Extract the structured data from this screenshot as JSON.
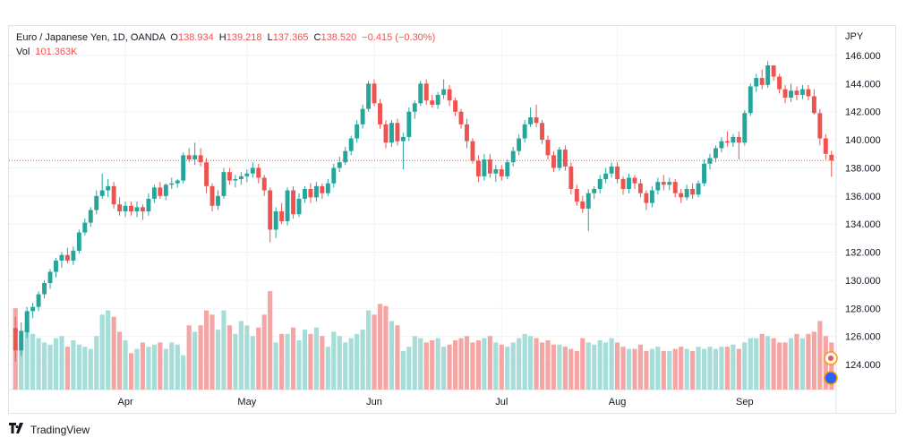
{
  "legend": {
    "symbol": "Euro / Japanese Yen, 1D, OANDA",
    "o_label": "O",
    "o": "138.934",
    "h_label": "H",
    "h": "139.218",
    "l_label": "L",
    "l": "137.365",
    "c_label": "C",
    "c": "138.520",
    "change": "−0.415 (−0.30%)",
    "vol_label": "Vol",
    "vol": "101.363K"
  },
  "footer": {
    "brand": "TradingView"
  },
  "colors": {
    "up": "#26a69a",
    "down": "#ef5350",
    "up_vol": "#a6ddd8",
    "down_vol": "#f5a6a4",
    "grid": "#f0f3fa",
    "text": "#131722",
    "last_price_line": "#ef5350"
  },
  "chart_data": {
    "type": "candlestick",
    "price_axis_label": "JPY",
    "y_ticks": [
      "146.000",
      "144.000",
      "142.000",
      "140.000",
      "138.000",
      "136.000",
      "134.000",
      "132.000",
      "130.000",
      "128.000",
      "126.000",
      "124.000"
    ],
    "ylim": [
      122.0,
      148.0
    ],
    "x_ticks": [
      {
        "label": "Apr",
        "index": 19
      },
      {
        "label": "May",
        "index": 40
      },
      {
        "label": "Jun",
        "index": 62
      },
      {
        "label": "Jul",
        "index": 84
      },
      {
        "label": "Aug",
        "index": 104
      },
      {
        "label": "Sep",
        "index": 126
      }
    ],
    "last_close": 138.52,
    "grid": true,
    "candles": [
      [
        126.6,
        127.4,
        124.2,
        125.0
      ],
      [
        125.0,
        127.0,
        124.6,
        126.4
      ],
      [
        126.3,
        128.1,
        125.9,
        127.8
      ],
      [
        127.8,
        128.4,
        127.3,
        128.1
      ],
      [
        128.1,
        129.2,
        127.8,
        129.0
      ],
      [
        129.0,
        130.0,
        128.7,
        129.8
      ],
      [
        129.8,
        130.8,
        129.4,
        130.6
      ],
      [
        130.6,
        131.6,
        130.2,
        131.4
      ],
      [
        131.4,
        132.0,
        130.9,
        131.8
      ],
      [
        131.8,
        132.3,
        131.2,
        131.4
      ],
      [
        131.4,
        132.4,
        131.1,
        132.1
      ],
      [
        132.1,
        133.6,
        131.9,
        133.4
      ],
      [
        133.4,
        134.4,
        133.2,
        134.1
      ],
      [
        134.1,
        135.2,
        133.8,
        135.0
      ],
      [
        135.0,
        136.4,
        134.7,
        136.0
      ],
      [
        136.0,
        137.6,
        135.8,
        136.4
      ],
      [
        136.4,
        137.2,
        135.9,
        136.7
      ],
      [
        136.7,
        137.0,
        135.1,
        135.4
      ],
      [
        135.4,
        135.9,
        134.6,
        134.9
      ],
      [
        134.9,
        135.6,
        134.5,
        135.3
      ],
      [
        135.3,
        135.6,
        134.6,
        134.9
      ],
      [
        134.9,
        135.6,
        134.5,
        135.2
      ],
      [
        135.2,
        135.4,
        134.3,
        134.9
      ],
      [
        134.9,
        136.2,
        134.6,
        135.8
      ],
      [
        135.8,
        136.8,
        135.5,
        136.6
      ],
      [
        136.6,
        137.0,
        135.8,
        136.0
      ],
      [
        136.0,
        136.9,
        135.7,
        136.8
      ],
      [
        136.8,
        137.3,
        136.5,
        136.9
      ],
      [
        136.9,
        137.2,
        136.6,
        137.1
      ],
      [
        137.1,
        139.1,
        136.9,
        138.9
      ],
      [
        138.9,
        139.4,
        138.4,
        138.6
      ],
      [
        138.6,
        139.8,
        138.2,
        138.9
      ],
      [
        138.9,
        139.4,
        138.1,
        138.4
      ],
      [
        138.4,
        138.7,
        136.2,
        136.7
      ],
      [
        136.7,
        136.9,
        134.9,
        135.3
      ],
      [
        135.3,
        136.4,
        135.0,
        136.0
      ],
      [
        136.0,
        138.0,
        135.8,
        137.7
      ],
      [
        137.7,
        138.0,
        136.8,
        137.1
      ],
      [
        137.1,
        137.5,
        136.6,
        137.2
      ],
      [
        137.2,
        137.7,
        136.8,
        137.4
      ],
      [
        137.4,
        137.9,
        137.0,
        137.6
      ],
      [
        137.6,
        138.4,
        137.3,
        138.0
      ],
      [
        138.0,
        138.3,
        136.9,
        137.3
      ],
      [
        137.3,
        137.5,
        136.0,
        136.4
      ],
      [
        136.4,
        136.6,
        132.7,
        133.6
      ],
      [
        133.6,
        135.2,
        133.0,
        134.9
      ],
      [
        134.9,
        135.5,
        134.0,
        134.2
      ],
      [
        134.2,
        136.6,
        133.9,
        136.4
      ],
      [
        136.4,
        136.7,
        134.4,
        134.7
      ],
      [
        134.7,
        136.2,
        134.5,
        135.8
      ],
      [
        135.8,
        136.7,
        135.5,
        136.5
      ],
      [
        136.5,
        136.9,
        135.5,
        135.9
      ],
      [
        135.9,
        137.0,
        135.6,
        136.7
      ],
      [
        136.7,
        136.9,
        135.8,
        136.2
      ],
      [
        136.2,
        137.2,
        136.0,
        136.9
      ],
      [
        136.9,
        138.3,
        136.6,
        138.0
      ],
      [
        138.0,
        138.8,
        137.7,
        138.4
      ],
      [
        138.4,
        139.5,
        138.2,
        139.2
      ],
      [
        139.2,
        140.3,
        138.9,
        140.1
      ],
      [
        140.1,
        141.4,
        139.8,
        141.1
      ],
      [
        141.1,
        142.5,
        140.8,
        142.2
      ],
      [
        142.2,
        144.2,
        142.0,
        144.0
      ],
      [
        144.0,
        144.3,
        142.4,
        142.6
      ],
      [
        142.6,
        142.9,
        140.8,
        141.1
      ],
      [
        141.1,
        141.4,
        139.4,
        139.8
      ],
      [
        139.8,
        141.4,
        139.5,
        141.2
      ],
      [
        141.2,
        141.5,
        139.6,
        139.9
      ],
      [
        139.9,
        140.5,
        137.9,
        140.2
      ],
      [
        140.2,
        142.3,
        139.9,
        142.0
      ],
      [
        142.0,
        142.8,
        141.5,
        142.6
      ],
      [
        142.6,
        144.2,
        142.4,
        144.0
      ],
      [
        144.0,
        144.3,
        142.5,
        142.8
      ],
      [
        142.8,
        143.2,
        142.3,
        142.5
      ],
      [
        142.5,
        143.4,
        142.2,
        143.2
      ],
      [
        143.2,
        144.3,
        142.9,
        143.6
      ],
      [
        143.6,
        143.9,
        142.4,
        142.8
      ],
      [
        142.8,
        143.0,
        141.7,
        142.0
      ],
      [
        142.0,
        142.2,
        140.8,
        141.1
      ],
      [
        141.1,
        141.5,
        139.4,
        139.9
      ],
      [
        139.9,
        140.1,
        138.3,
        138.5
      ],
      [
        138.5,
        138.9,
        137.0,
        137.4
      ],
      [
        137.4,
        139.0,
        137.1,
        138.6
      ],
      [
        138.6,
        139.0,
        137.3,
        137.6
      ],
      [
        137.6,
        138.2,
        137.0,
        137.9
      ],
      [
        137.9,
        138.2,
        137.1,
        137.4
      ],
      [
        137.4,
        138.6,
        137.2,
        138.4
      ],
      [
        138.4,
        139.5,
        138.1,
        139.2
      ],
      [
        139.2,
        140.4,
        138.9,
        140.1
      ],
      [
        140.1,
        141.4,
        139.8,
        141.1
      ],
      [
        141.1,
        142.3,
        140.9,
        141.6
      ],
      [
        141.6,
        142.5,
        140.9,
        141.2
      ],
      [
        141.2,
        141.4,
        139.7,
        140.0
      ],
      [
        140.0,
        140.3,
        138.6,
        138.9
      ],
      [
        138.9,
        139.2,
        137.7,
        138.0
      ],
      [
        138.0,
        139.5,
        137.8,
        139.3
      ],
      [
        139.3,
        139.6,
        137.8,
        138.1
      ],
      [
        138.1,
        138.4,
        136.1,
        136.5
      ],
      [
        136.5,
        136.8,
        135.3,
        135.6
      ],
      [
        135.6,
        136.0,
        134.8,
        135.1
      ],
      [
        135.1,
        136.5,
        133.5,
        136.2
      ],
      [
        136.2,
        136.7,
        135.8,
        136.5
      ],
      [
        136.5,
        137.5,
        136.2,
        137.2
      ],
      [
        137.2,
        138.0,
        136.9,
        137.6
      ],
      [
        137.6,
        138.4,
        137.3,
        138.1
      ],
      [
        138.1,
        138.4,
        136.9,
        137.2
      ],
      [
        137.2,
        137.4,
        136.1,
        136.5
      ],
      [
        136.5,
        137.6,
        136.2,
        137.3
      ],
      [
        137.3,
        137.5,
        136.5,
        136.9
      ],
      [
        136.9,
        137.2,
        135.9,
        136.2
      ],
      [
        136.2,
        136.4,
        135.0,
        135.5
      ],
      [
        135.5,
        136.7,
        135.2,
        136.4
      ],
      [
        136.4,
        137.3,
        136.1,
        137.0
      ],
      [
        137.0,
        137.5,
        136.4,
        136.8
      ],
      [
        136.8,
        137.3,
        136.4,
        137.0
      ],
      [
        137.0,
        137.2,
        135.9,
        136.2
      ],
      [
        136.2,
        136.5,
        135.5,
        135.9
      ],
      [
        135.9,
        136.8,
        135.7,
        136.5
      ],
      [
        136.5,
        136.9,
        135.8,
        136.1
      ],
      [
        136.1,
        137.1,
        135.9,
        136.9
      ],
      [
        136.9,
        138.6,
        136.7,
        138.3
      ],
      [
        138.3,
        139.0,
        137.9,
        138.7
      ],
      [
        138.7,
        139.6,
        138.4,
        139.4
      ],
      [
        139.4,
        140.2,
        139.1,
        139.9
      ],
      [
        139.9,
        140.6,
        139.5,
        139.8
      ],
      [
        139.8,
        140.4,
        139.5,
        140.2
      ],
      [
        140.2,
        140.6,
        138.6,
        139.8
      ],
      [
        139.8,
        142.1,
        139.6,
        141.9
      ],
      [
        141.9,
        144.0,
        141.7,
        143.8
      ],
      [
        143.8,
        144.7,
        143.4,
        144.4
      ],
      [
        144.4,
        145.0,
        143.6,
        143.9
      ],
      [
        143.9,
        145.6,
        143.7,
        145.3
      ],
      [
        145.3,
        145.3,
        144.2,
        144.5
      ],
      [
        144.5,
        144.7,
        143.3,
        143.6
      ],
      [
        143.6,
        143.9,
        142.6,
        143.0
      ],
      [
        143.0,
        144.0,
        142.7,
        143.5
      ],
      [
        143.5,
        143.8,
        142.8,
        143.2
      ],
      [
        143.2,
        143.9,
        142.9,
        143.6
      ],
      [
        143.6,
        143.9,
        142.8,
        143.1
      ],
      [
        143.1,
        143.6,
        141.8,
        141.9
      ],
      [
        141.9,
        142.2,
        139.6,
        140.1
      ],
      [
        140.1,
        140.4,
        138.6,
        139.0
      ],
      [
        138.934,
        139.218,
        137.365,
        138.52
      ]
    ],
    "volume": [
      76,
      48,
      64,
      52,
      48,
      44,
      42,
      48,
      50,
      40,
      46,
      42,
      40,
      38,
      50,
      70,
      74,
      68,
      54,
      46,
      34,
      38,
      44,
      40,
      42,
      44,
      38,
      44,
      42,
      32,
      60,
      54,
      60,
      74,
      70,
      56,
      74,
      60,
      52,
      64,
      60,
      50,
      58,
      70,
      92,
      44,
      52,
      52,
      58,
      46,
      56,
      52,
      58,
      50,
      40,
      54,
      50,
      44,
      48,
      52,
      56,
      74,
      70,
      80,
      78,
      64,
      60,
      36,
      40,
      50,
      48,
      44,
      46,
      48,
      40,
      42,
      46,
      48,
      50,
      44,
      46,
      48,
      50,
      44,
      42,
      40,
      44,
      48,
      52,
      50,
      48,
      44,
      46,
      42,
      42,
      40,
      38,
      36,
      48,
      44,
      42,
      46,
      44,
      48,
      44,
      40,
      38,
      38,
      42,
      36,
      38,
      40,
      36,
      36,
      38,
      40,
      38,
      36,
      40,
      38,
      40,
      38,
      40,
      40,
      42,
      38,
      44,
      48,
      48,
      52,
      50,
      48,
      44,
      44,
      48,
      52,
      48,
      52,
      54,
      64,
      50,
      44
    ]
  }
}
